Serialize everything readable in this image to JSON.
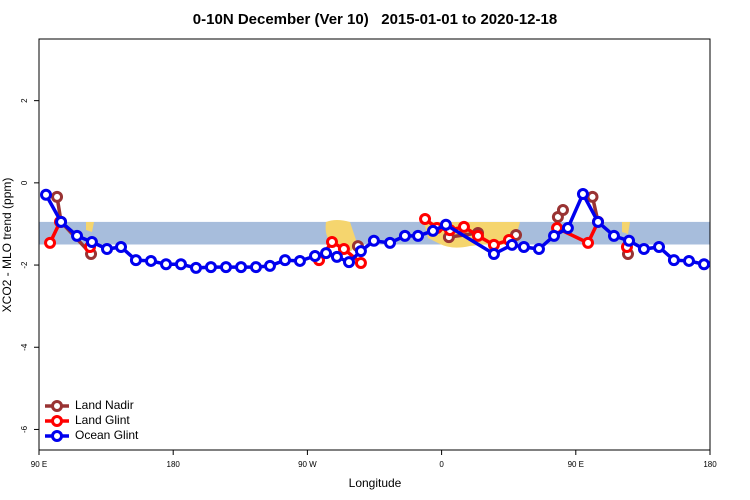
{
  "chart_data": {
    "type": "line",
    "title": "0-10N December (Ver 10)   2015-01-01 to 2020-12-18",
    "x_label": "Longitude",
    "y_label": "XCO2 - MLO trend (ppm)",
    "xlim": [
      90,
      540
    ],
    "xticks": [
      {
        "value": 90,
        "label": "90 E"
      },
      180,
      {
        "value": 270,
        "label": "90 W"
      },
      {
        "value": 360,
        "label": "0"
      },
      {
        "value": 450,
        "label": "90 E"
      },
      {
        "value": 540,
        "label": "180"
      }
    ],
    "ylim": [
      -6.5,
      3.5
    ],
    "yticks": [
      -6,
      -4,
      -2,
      0,
      2
    ],
    "band": [
      -1.5,
      -0.95
    ],
    "band_color": "#a7bddc",
    "legend": "bottom-left",
    "series": [
      {
        "name": "Land Nadir",
        "color": "#993333",
        "x": [
          102.1,
          104.8,
          124.9,
          null,
          303.9,
          null,
          364.9,
          384.4,
          null,
          409.9,
          null,
          438.0,
          441.4,
          null,
          461.2,
          464.9,
          null,
          485.0
        ],
        "values": [
          -0.34,
          -0.95,
          -1.73,
          null,
          -1.54,
          null,
          -1.32,
          -1.22,
          null,
          -1.27,
          null,
          -0.83,
          -0.66,
          null,
          -0.34,
          -0.95,
          null,
          -1.73
        ]
      },
      {
        "name": "Land Glint",
        "color": "#ff0000",
        "x": [
          97.4,
          104.1,
          null,
          124.2,
          null,
          277.8,
          286.5,
          294.5,
          305.9,
          null,
          348.9,
          356.9,
          365.6,
          375.0,
          384.4,
          395.1,
          405.2,
          null,
          437.4,
          458.2,
          464.9,
          null,
          484.3
        ],
        "values": [
          -1.46,
          -0.95,
          null,
          -1.56,
          null,
          -1.88,
          -1.44,
          -1.61,
          -1.95,
          null,
          -0.88,
          -1.1,
          -1.15,
          -1.07,
          -1.29,
          -1.51,
          -1.39,
          null,
          -1.1,
          -1.46,
          -0.95,
          null,
          -1.56
        ]
      },
      {
        "name": "Ocean Glint",
        "color": "#0000ee",
        "x": [
          94.7,
          104.8,
          115.5,
          125.5,
          135.6,
          145.0,
          155.0,
          165.1,
          175.2,
          185.2,
          195.3,
          205.3,
          215.4,
          225.5,
          235.5,
          244.9,
          255.0,
          265.0,
          275.1,
          282.5,
          289.8,
          297.9,
          305.9,
          314.6,
          325.4,
          335.4,
          344.2,
          354.2,
          362.9,
          395.1,
          407.2,
          415.2,
          425.3,
          435.4,
          444.7,
          454.8,
          464.9,
          475.6,
          485.7,
          495.7,
          505.8,
          515.8,
          525.9,
          536.0
        ],
        "values": [
          -0.29,
          -0.95,
          -1.29,
          -1.44,
          -1.61,
          -1.56,
          -1.88,
          -1.9,
          -1.98,
          -1.98,
          -2.07,
          -2.05,
          -2.05,
          -2.05,
          -2.05,
          -2.02,
          -1.88,
          -1.9,
          -1.78,
          -1.71,
          -1.8,
          -1.93,
          -1.66,
          -1.41,
          -1.46,
          -1.29,
          -1.29,
          -1.17,
          -1.02,
          -1.73,
          -1.51,
          -1.56,
          -1.61,
          -1.29,
          -1.1,
          -0.27,
          -0.95,
          -1.29,
          -1.41,
          -1.61,
          -1.56,
          -1.88,
          -1.9,
          -1.98
        ]
      }
    ]
  }
}
